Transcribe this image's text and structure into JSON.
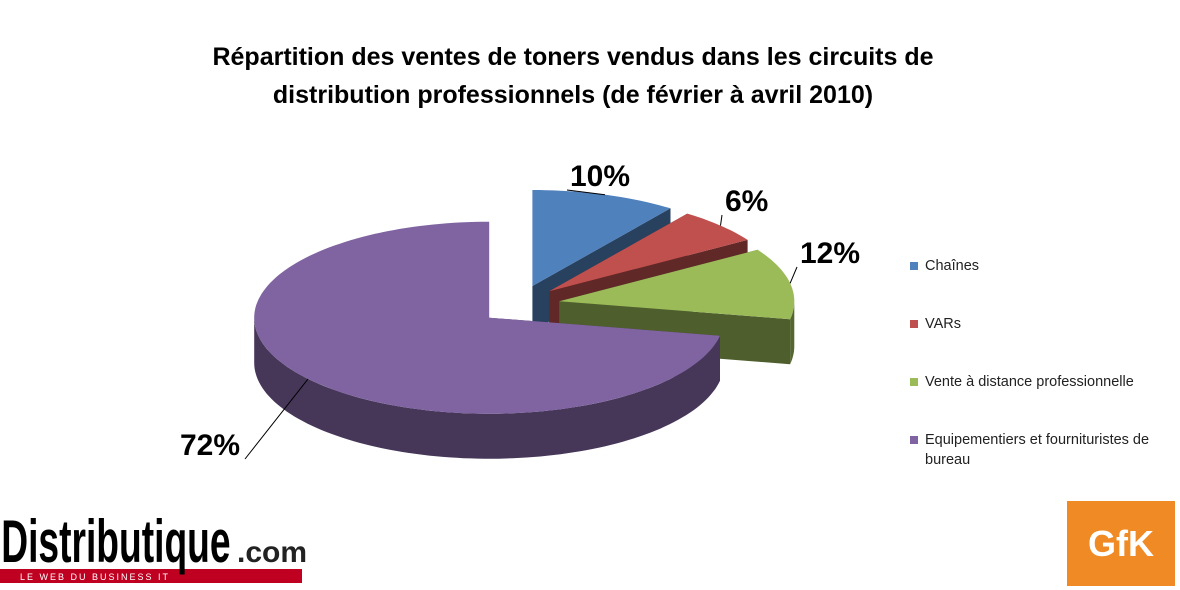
{
  "chart_data": {
    "type": "pie",
    "title": "Répartition des ventes de toners vendus dans les circuits de distribution professionnels (de février à avril 2010)",
    "categories": [
      "Chaînes",
      "VARs",
      "Vente à distance professionnelle",
      "Equipementiers et fournituristes de bureau"
    ],
    "values": [
      10,
      6,
      12,
      72
    ],
    "value_labels": [
      "10%",
      "6%",
      "12%",
      "72%"
    ],
    "colors": [
      "#4f81bd",
      "#c0504d",
      "#9bbb59",
      "#8064a2"
    ],
    "legend": "right"
  },
  "logos": {
    "left": "Distributique",
    "left_suffix": ".com",
    "left_tagline": "LE WEB DU BUSINESS IT",
    "right": "GfK"
  }
}
